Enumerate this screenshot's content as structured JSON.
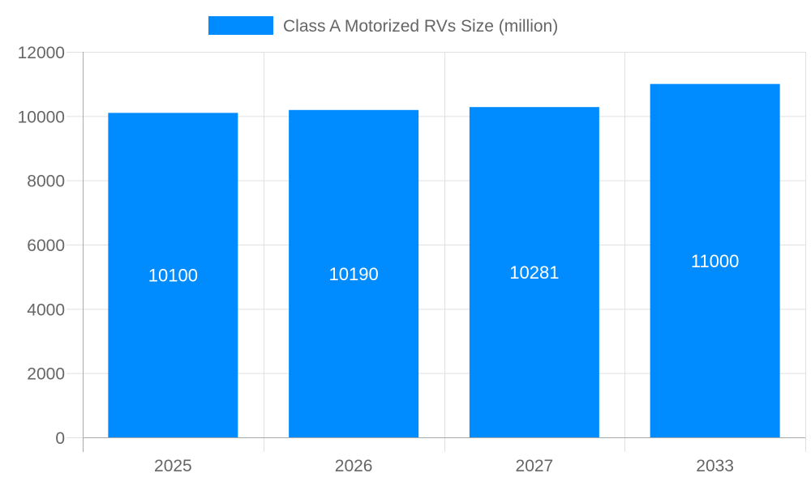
{
  "chart_data": {
    "type": "bar",
    "title": "",
    "xlabel": "",
    "ylabel": "",
    "categories": [
      "2025",
      "2026",
      "2027",
      "2033"
    ],
    "series": [
      {
        "name": "Class A Motorized RVs Size (million)",
        "values": [
          10100,
          10190,
          10281,
          11000
        ],
        "color": "#008cff"
      }
    ],
    "ylim": [
      0,
      12000
    ],
    "yticks": [
      0,
      2000,
      4000,
      6000,
      8000,
      10000,
      12000
    ],
    "grid": true,
    "legend": "top-center",
    "data_labels": true
  }
}
